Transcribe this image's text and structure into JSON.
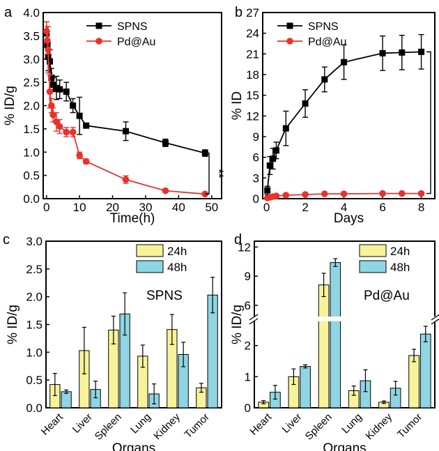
{
  "colors": {
    "spns": "#000000",
    "pdau": "#e8322b",
    "h24": "#f7f39a",
    "h48": "#8fd5e3"
  },
  "chart_data": [
    {
      "panel": "a",
      "type": "line",
      "xlabel": "Time(h)",
      "ylabel": "% ID/g",
      "xlim": [
        -1,
        53
      ],
      "ylim": [
        0,
        4.0
      ],
      "xticks": [
        0,
        10,
        20,
        30,
        40,
        50
      ],
      "yticks": [
        0.0,
        0.5,
        1.0,
        1.5,
        2.0,
        2.5,
        3.0,
        3.5,
        4.0
      ],
      "legend_position": "top-right",
      "significance": "**",
      "series": [
        {
          "name": "SPNS",
          "marker": "square",
          "x": [
            0,
            0.25,
            0.5,
            1,
            1.5,
            2,
            3,
            4,
            6,
            8,
            10,
            12,
            24,
            36,
            48
          ],
          "y": [
            3.55,
            3.3,
            3.05,
            2.95,
            2.6,
            2.45,
            2.38,
            2.35,
            2.3,
            2.0,
            1.78,
            1.57,
            1.45,
            1.2,
            0.98
          ],
          "err": [
            0.25,
            0.3,
            0.3,
            0.25,
            0.2,
            0.15,
            0.25,
            0.2,
            0.2,
            0.15,
            0.4,
            0.05,
            0.2,
            0.08,
            0.07
          ]
        },
        {
          "name": "Pd@Au",
          "marker": "circle",
          "x": [
            0,
            0.25,
            0.5,
            1,
            1.5,
            2,
            3,
            4,
            6,
            8,
            10,
            12,
            24,
            36,
            48
          ],
          "y": [
            3.6,
            3.4,
            3.2,
            2.3,
            2.0,
            1.8,
            1.65,
            1.55,
            1.43,
            1.43,
            0.93,
            0.8,
            0.41,
            0.17,
            0.1
          ],
          "err": [
            0.2,
            0.3,
            0.5,
            0.35,
            0.15,
            0.15,
            0.2,
            0.15,
            0.1,
            0.1,
            0.07,
            0.05,
            0.08,
            0.03,
            0.03
          ]
        }
      ]
    },
    {
      "panel": "b",
      "type": "line",
      "xlabel": "Days",
      "ylabel": "% ID",
      "xlim": [
        -0.2,
        8.7
      ],
      "ylim": [
        0,
        27
      ],
      "xticks": [
        0,
        2,
        4,
        6,
        8
      ],
      "yticks": [
        0,
        3,
        6,
        9,
        12,
        15,
        18,
        21,
        24,
        27
      ],
      "legend_position": "top-left",
      "significance": "**",
      "series": [
        {
          "name": "SPNS",
          "marker": "square",
          "x": [
            0.04,
            0.17,
            0.33,
            0.5,
            1,
            2,
            3,
            4,
            6,
            7,
            8
          ],
          "y": [
            1.2,
            4.8,
            5.8,
            7.0,
            10.2,
            13.8,
            17.3,
            19.8,
            21.1,
            21.2,
            21.3
          ],
          "err": [
            0.6,
            1.3,
            1.5,
            1.2,
            2.5,
            2.0,
            1.8,
            2.5,
            2.5,
            2.5,
            2.5
          ]
        },
        {
          "name": "Pd@Au",
          "marker": "circle",
          "x": [
            0.04,
            0.17,
            0.33,
            0.5,
            1,
            2,
            3,
            4,
            6,
            7,
            8
          ],
          "y": [
            0.1,
            0.2,
            0.3,
            0.4,
            0.5,
            0.6,
            0.7,
            0.7,
            0.75,
            0.75,
            0.75
          ],
          "err": [
            0.05,
            0.05,
            0.05,
            0.05,
            0.05,
            0.05,
            0.05,
            0.05,
            0.05,
            0.05,
            0.05
          ]
        }
      ]
    },
    {
      "panel": "c",
      "type": "bar",
      "annotation": "SPNS",
      "xlabel": "Organs",
      "ylabel": "% ID/g",
      "ylim": [
        0,
        3.0
      ],
      "yticks": [
        0.0,
        0.5,
        1.0,
        1.5,
        2.0,
        2.5,
        3.0
      ],
      "categories": [
        "Heart",
        "Liver",
        "Spleen",
        "Lung",
        "Kidney",
        "Tumor"
      ],
      "legend_position": "top-right",
      "series": [
        {
          "name": "24h",
          "values": [
            0.42,
            1.03,
            1.4,
            0.93,
            1.41,
            0.36
          ],
          "err": [
            0.2,
            0.42,
            0.25,
            0.2,
            0.27,
            0.08
          ]
        },
        {
          "name": "48h",
          "values": [
            0.29,
            0.33,
            1.69,
            0.25,
            0.96,
            2.03
          ],
          "err": [
            0.03,
            0.15,
            0.38,
            0.18,
            0.22,
            0.32
          ]
        }
      ]
    },
    {
      "panel": "d",
      "type": "bar",
      "annotation": "Pd@Au",
      "xlabel": "Organs",
      "ylabel": "% ID/g",
      "axis_break": [
        2.8,
        5.0
      ],
      "ylim": [
        0,
        12.6
      ],
      "yticks": [
        0,
        1,
        2,
        6,
        9,
        12
      ],
      "categories": [
        "Heart",
        "Liver",
        "Spleen",
        "Lung",
        "Kidney",
        "Tumor"
      ],
      "legend_position": "top-right",
      "series": [
        {
          "name": "24h",
          "values": [
            0.18,
            1.0,
            8.1,
            0.55,
            0.18,
            1.68
          ],
          "err": [
            0.05,
            0.25,
            1.2,
            0.15,
            0.04,
            0.2
          ]
        },
        {
          "name": "48h",
          "values": [
            0.5,
            1.33,
            10.4,
            0.87,
            0.63,
            2.37
          ],
          "err": [
            0.22,
            0.05,
            0.4,
            0.35,
            0.22,
            0.25
          ]
        }
      ]
    }
  ],
  "panel_labels": [
    "a",
    "b",
    "c",
    "d"
  ]
}
